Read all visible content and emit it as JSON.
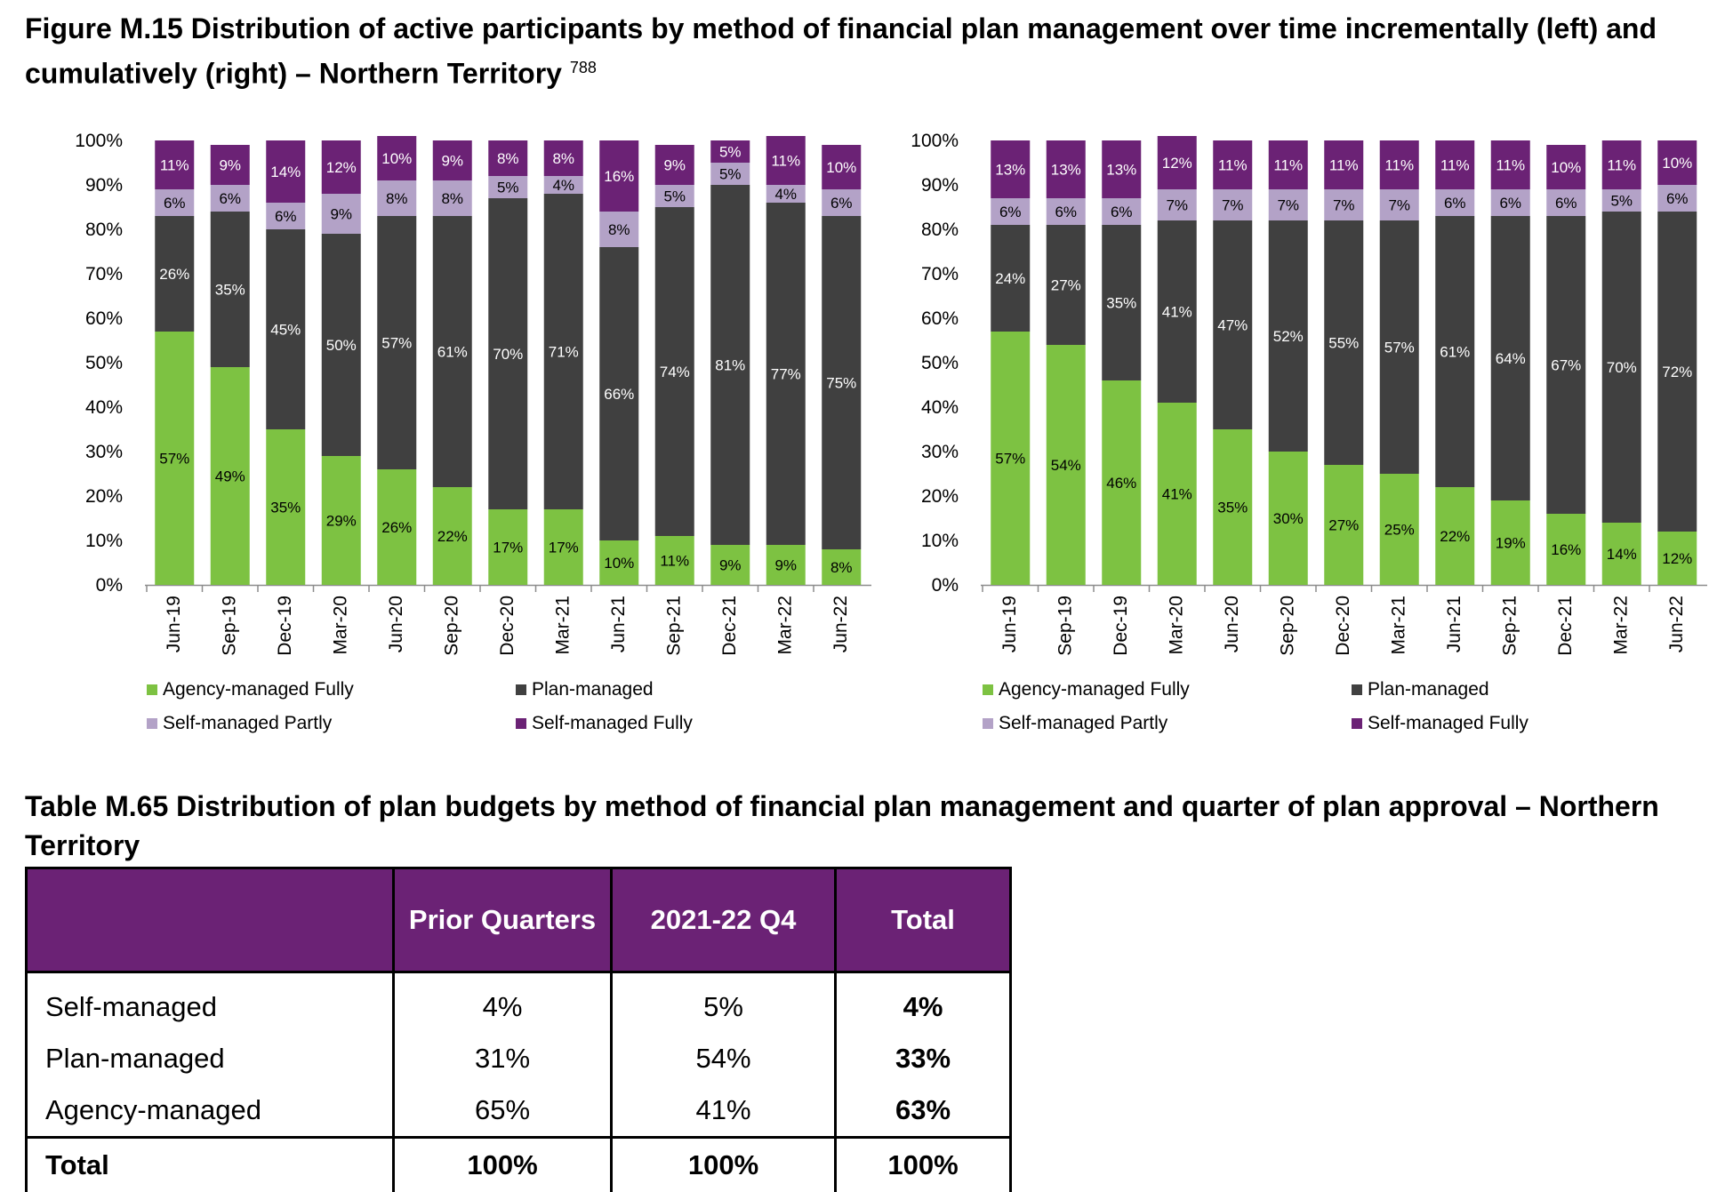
{
  "figure": {
    "title": "Figure M.15 Distribution of active participants by method of financial plan management over time incrementally (left) and cumulatively (right) – Northern Territory",
    "footnote": "788"
  },
  "colors": {
    "agency": "#7dc242",
    "plan": "#404040",
    "self_partly": "#b3a2c7",
    "self_fully": "#6b2275",
    "header_bg": "#6b2275"
  },
  "legend": [
    "Agency-managed Fully",
    "Plan-managed",
    "Self-managed Partly",
    "Self-managed Fully"
  ],
  "chart_data": [
    {
      "type": "bar",
      "stacked": true,
      "title": "",
      "categories": [
        "Jun-19",
        "Sep-19",
        "Dec-19",
        "Mar-20",
        "Jun-20",
        "Sep-20",
        "Dec-20",
        "Mar-21",
        "Jun-21",
        "Sep-21",
        "Dec-21",
        "Mar-22",
        "Jun-22"
      ],
      "ylim": [
        0,
        100
      ],
      "yticks": [
        "0%",
        "10%",
        "20%",
        "30%",
        "40%",
        "50%",
        "60%",
        "70%",
        "80%",
        "90%",
        "100%"
      ],
      "legend_position": "bottom",
      "series": [
        {
          "name": "Agency-managed Fully",
          "values": [
            57,
            49,
            35,
            29,
            26,
            22,
            17,
            17,
            10,
            11,
            9,
            9,
            8
          ]
        },
        {
          "name": "Plan-managed",
          "values": [
            26,
            35,
            45,
            50,
            57,
            61,
            70,
            71,
            66,
            74,
            81,
            77,
            75
          ]
        },
        {
          "name": "Self-managed Partly",
          "values": [
            6,
            6,
            6,
            9,
            8,
            8,
            5,
            4,
            8,
            5,
            5,
            4,
            6
          ]
        },
        {
          "name": "Self-managed Fully",
          "values": [
            11,
            9,
            14,
            12,
            10,
            9,
            8,
            8,
            16,
            9,
            5,
            11,
            10
          ]
        }
      ]
    },
    {
      "type": "bar",
      "stacked": true,
      "title": "",
      "categories": [
        "Jun-19",
        "Sep-19",
        "Dec-19",
        "Mar-20",
        "Jun-20",
        "Sep-20",
        "Dec-20",
        "Mar-21",
        "Jun-21",
        "Sep-21",
        "Dec-21",
        "Mar-22",
        "Jun-22"
      ],
      "ylim": [
        0,
        100
      ],
      "yticks": [
        "0%",
        "10%",
        "20%",
        "30%",
        "40%",
        "50%",
        "60%",
        "70%",
        "80%",
        "90%",
        "100%"
      ],
      "legend_position": "bottom",
      "series": [
        {
          "name": "Agency-managed Fully",
          "values": [
            57,
            54,
            46,
            41,
            35,
            30,
            27,
            25,
            22,
            19,
            16,
            14,
            12
          ]
        },
        {
          "name": "Plan-managed",
          "values": [
            24,
            27,
            35,
            41,
            47,
            52,
            55,
            57,
            61,
            64,
            67,
            70,
            72
          ]
        },
        {
          "name": "Self-managed Partly",
          "values": [
            6,
            6,
            6,
            7,
            7,
            7,
            7,
            7,
            6,
            6,
            6,
            5,
            6
          ]
        },
        {
          "name": "Self-managed Fully",
          "values": [
            13,
            13,
            13,
            12,
            11,
            11,
            11,
            11,
            11,
            11,
            10,
            11,
            10
          ]
        }
      ]
    }
  ],
  "table": {
    "title": "Table M.65 Distribution of plan budgets by method of financial plan management and quarter of plan approval – Northern Territory",
    "headers": [
      "",
      "Prior Quarters",
      "2021-22 Q4",
      "Total"
    ],
    "rows": [
      {
        "label": "Self-managed",
        "prior": "4%",
        "q4": "5%",
        "total": "4%"
      },
      {
        "label": "Plan-managed",
        "prior": "31%",
        "q4": "54%",
        "total": "33%"
      },
      {
        "label": "Agency-managed",
        "prior": "65%",
        "q4": "41%",
        "total": "63%"
      }
    ],
    "total_row": {
      "label": "Total",
      "prior": "100%",
      "q4": "100%",
      "total": "100%"
    }
  }
}
